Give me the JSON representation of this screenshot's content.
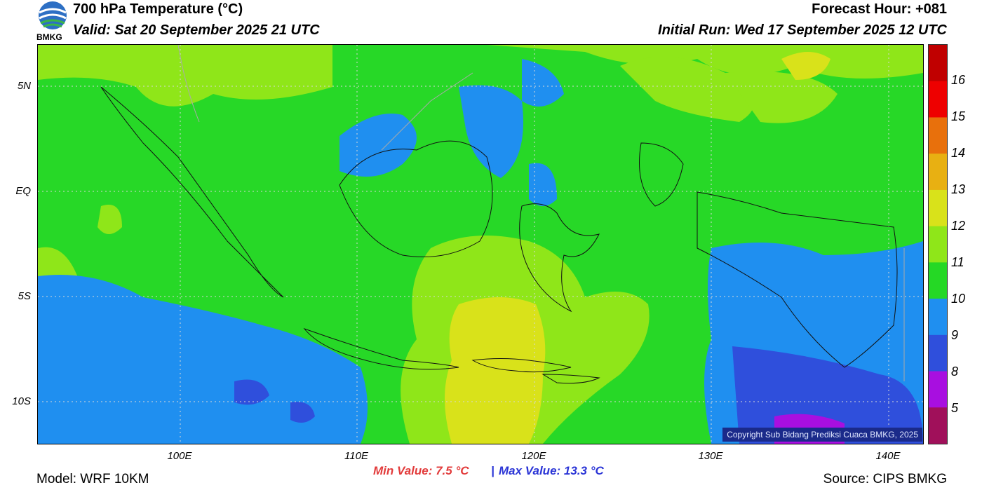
{
  "header": {
    "title": "700 hPa Temperature (°C)",
    "valid": "Valid: Sat 20 September 2025 21 UTC",
    "forecast_hour": "Forecast Hour: +081",
    "initial_run": "Initial Run: Wed 17 September 2025 12 UTC"
  },
  "logo": {
    "text": "BMKG",
    "icon": "bmkg-logo"
  },
  "axes": {
    "lat_labels": [
      "5N",
      "EQ",
      "5S",
      "10S"
    ],
    "lon_labels": [
      "100E",
      "110E",
      "120E",
      "130E",
      "140E"
    ]
  },
  "colorbar": {
    "labels": [
      "16",
      "15",
      "14",
      "13",
      "12",
      "11",
      "10",
      "9",
      "8",
      "5"
    ],
    "colors": [
      "#c00000",
      "#ee0000",
      "#e8700c",
      "#e8b012",
      "#d9e21a",
      "#8fe619",
      "#25d825",
      "#1f8ff0",
      "#2f4fdc",
      "#a80fe0",
      "#a0105a"
    ]
  },
  "stats": {
    "min": "Min Value: 7.5 °C",
    "separator": "|",
    "max": "Max Value: 13.3 °C"
  },
  "footer": {
    "model": "Model: WRF 10KM",
    "source": "Source: CIPS BMKG",
    "copyright": "Copyright Sub Bidang Prediksi Cuaca BMKG, 2025"
  }
}
